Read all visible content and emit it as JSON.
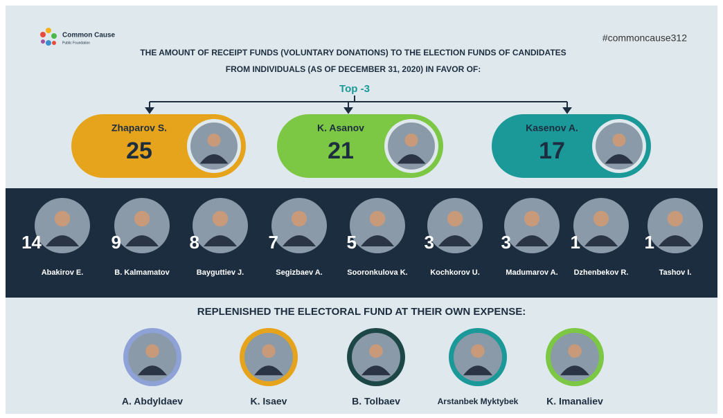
{
  "header": {
    "logo_title": "Common Cause",
    "logo_subtitle": "Public Foundation",
    "hashtag": "#commoncause312",
    "title_lines": [
      "THE AMOUNT OF RECEIPT FUNDS (VOLUNTARY DONATIONS) TO THE ELECTION FUNDS OF CANDIDATES",
      "FROM INDIVIDUALS (AS OF DECEMBER 31, 2020) IN FAVOR OF:"
    ]
  },
  "top3": {
    "label": "Top -3",
    "candidates": [
      {
        "name": "Zhaparov S.",
        "amount": 25,
        "color": "#e6a41c"
      },
      {
        "name": "K. Asanov",
        "amount": 21,
        "color": "#7cc744"
      },
      {
        "name": "Kasenov A.",
        "amount": 17,
        "color": "#1b9898"
      }
    ]
  },
  "others": [
    {
      "name": "Abakirov E.",
      "amount": 14
    },
    {
      "name": "B. Kalmamatov",
      "amount": 9
    },
    {
      "name": "Bayguttiev J.",
      "amount": 8
    },
    {
      "name": "Segizbaev A.",
      "amount": 7
    },
    {
      "name": "Sooronkulova K.",
      "amount": 5
    },
    {
      "name": "Kochkorov U.",
      "amount": 3
    },
    {
      "name": "Madumarov A.",
      "amount": 3
    },
    {
      "name": "Dzhenbekov R.",
      "amount": 1
    },
    {
      "name": "Tashov I.",
      "amount": 1
    }
  ],
  "self_funded": {
    "heading": "REPLENISHED THE ELECTORAL FUND AT THEIR OWN EXPENSE:",
    "people": [
      {
        "name": "A. Abdyldaev",
        "color": "#8ea2d8"
      },
      {
        "name": "K. Isaev",
        "color": "#e6a41c"
      },
      {
        "name": "B. Tolbaev",
        "color": "#1d4747"
      },
      {
        "name": "Arstanbek Myktybek",
        "color": "#1b9898"
      },
      {
        "name": "K. Imanaliev",
        "color": "#7cc744"
      }
    ]
  }
}
